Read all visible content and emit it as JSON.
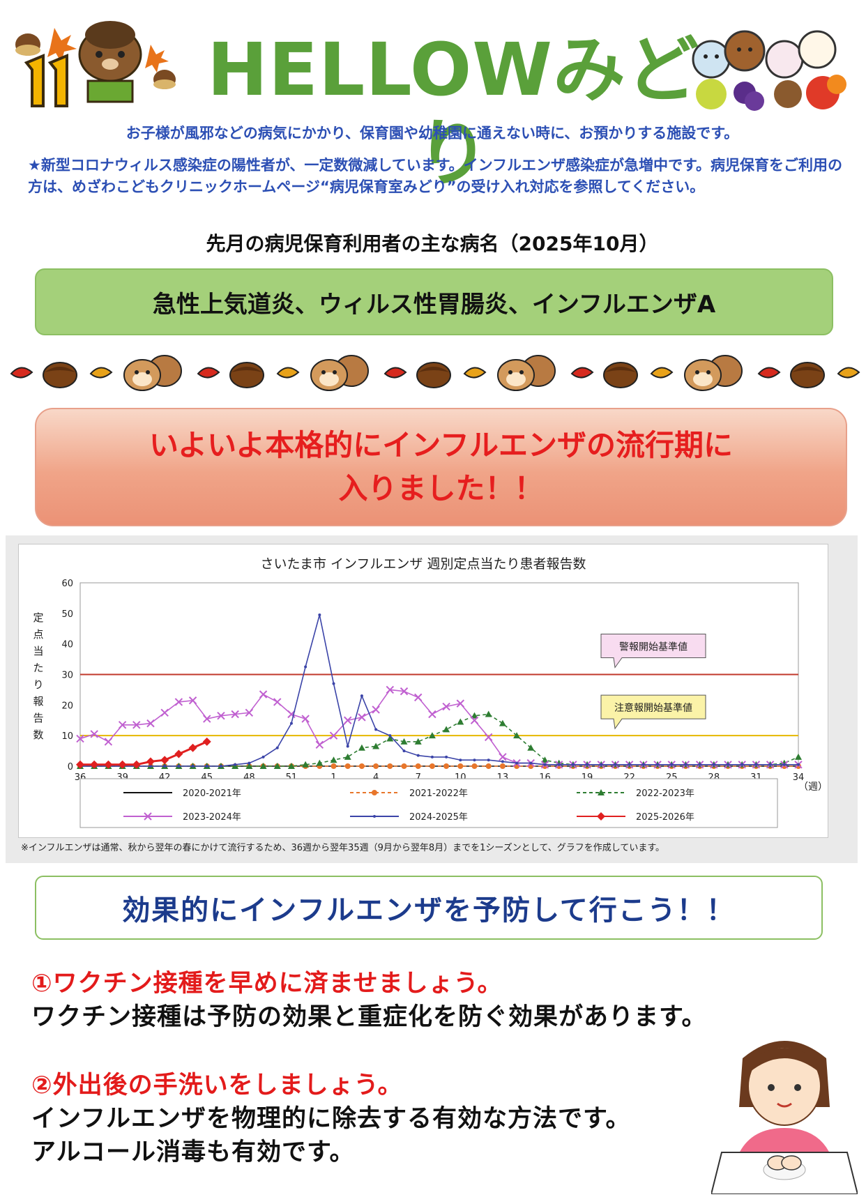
{
  "header": {
    "month_badge": "11がつ",
    "title": "HELLOWみどり"
  },
  "intro": "お子様が風邪などの病気にかかり、保育園や幼稚園に通えない時に、お預かりする施設です。",
  "notice": "★新型コロナウィルス感染症の陽性者が、一定数微減しています。インフルエンザ感染症が急増中です。病児保育をご利用の方は、めざわこどもクリニックホームページ“病児保育室みどり”の受け入れ対応を参照してください。",
  "last_month": {
    "heading": "先月の病児保育利用者の主な病名（2025年10月）",
    "diseases": "急性上気道炎、ウィルス性胃腸炎、インフルエンザA"
  },
  "alert": {
    "line1": "いよいよ本格的にインフルエンザの流行期に",
    "line2": "入りました！！"
  },
  "chart_data": {
    "type": "line",
    "title": "さいたま市 インフルエンザ 週別定点当たり患者報告数",
    "ylabel": "定点当たり報告数",
    "xlabel": "（週）",
    "ylim": [
      0,
      60
    ],
    "yticks": [
      0,
      10,
      20,
      30,
      40,
      50,
      60
    ],
    "x_tick_labels": [
      "36",
      "39",
      "42",
      "45",
      "48",
      "51",
      "1",
      "4",
      "7",
      "10",
      "13",
      "16",
      "19",
      "22",
      "25",
      "28",
      "31",
      "34"
    ],
    "thresholds": [
      {
        "label": "警報開始基準値",
        "value": 30,
        "color": "#c0392b"
      },
      {
        "label": "注意報開始基準値",
        "value": 10,
        "color": "#e6b800"
      }
    ],
    "series": [
      {
        "name": "2020-2021年",
        "color": "#111111",
        "values": [
          0,
          0,
          0,
          0,
          0,
          0,
          0,
          0,
          0,
          0,
          0,
          0,
          0,
          0,
          0,
          0,
          0,
          0,
          0,
          0,
          0,
          0,
          0,
          0,
          0,
          0,
          0,
          0,
          0,
          0,
          0,
          0,
          0,
          0,
          0,
          0,
          0,
          0,
          0,
          0,
          0,
          0,
          0,
          0,
          0,
          0,
          0,
          0,
          0,
          0,
          0,
          0
        ]
      },
      {
        "name": "2021-2022年",
        "color": "#e8762b",
        "values": [
          0,
          0,
          0,
          0,
          0,
          0,
          0,
          0,
          0,
          0,
          0,
          0,
          0,
          0,
          0,
          0,
          0,
          0,
          0,
          0,
          0,
          0,
          0,
          0,
          0,
          0,
          0,
          0,
          0,
          0,
          0,
          0,
          0,
          0,
          0,
          0,
          0,
          0,
          0,
          0,
          0,
          0,
          0,
          0,
          0,
          0,
          0,
          0,
          0,
          0,
          0,
          0
        ]
      },
      {
        "name": "2022-2023年",
        "color": "#2e7d32",
        "values": [
          0,
          0,
          0,
          0,
          0,
          0,
          0,
          0,
          0,
          0,
          0,
          0,
          0,
          0,
          0,
          0,
          0.5,
          1,
          2,
          3,
          6,
          6.5,
          9,
          8,
          8,
          10,
          12,
          14.5,
          16.5,
          17,
          14,
          10,
          6,
          2,
          1,
          0.5,
          0.5,
          0.5,
          0.5,
          0.5,
          0.5,
          0.5,
          0.5,
          0.5,
          0.5,
          0.5,
          0.5,
          0.5,
          0.5,
          0.5,
          1,
          3
        ]
      },
      {
        "name": "2023-2024年",
        "color": "#c060d0",
        "values": [
          9,
          10.5,
          8,
          13.5,
          13.5,
          14,
          17.5,
          21,
          21.5,
          15.5,
          16.5,
          17,
          17.5,
          23.5,
          21,
          17,
          15.5,
          7,
          10,
          15,
          16,
          18.5,
          25,
          24.5,
          22.5,
          17,
          19.5,
          20.5,
          15,
          9.5,
          3,
          1,
          1,
          0.5,
          0.5,
          0.5,
          0.5,
          0.5,
          0.5,
          0.5,
          0.5,
          0.5,
          0.5,
          0.5,
          0.5,
          0.5,
          0.5,
          0.5,
          0.5,
          0.5,
          0.5,
          0.5
        ]
      },
      {
        "name": "2024-2025年",
        "color": "#3b44a8",
        "values": [
          0,
          0,
          0,
          0,
          0,
          0,
          0,
          0,
          0,
          0,
          0,
          0.5,
          1,
          3,
          6,
          14,
          32.5,
          49.5,
          27,
          6.5,
          23,
          12,
          10,
          5,
          3.5,
          3,
          3,
          2,
          2,
          2,
          1.5,
          1,
          1,
          0.5,
          0.5,
          0.5,
          0.5,
          0.5,
          0.5,
          0.5,
          0.5,
          0.5,
          0.5,
          0.5,
          0.5,
          0.5,
          0.5,
          0.5,
          0.5,
          0.5,
          0.5,
          0.5
        ]
      },
      {
        "name": "2025-2026年",
        "color": "#e02020",
        "values": [
          0.5,
          0.5,
          0.5,
          0.5,
          0.5,
          1.5,
          2,
          4,
          6,
          8
        ]
      }
    ],
    "note": "※インフルエンザは通常、秋から翌年の春にかけて流行するため、36週から翌年35週（9月から翌年8月）までを1シーズンとして、グラフを作成しています。"
  },
  "prevention": {
    "heading": "効果的にインフルエンザを予防して行こう！！",
    "tips": [
      {
        "title": "①ワクチン接種を早めに済ませましょう。",
        "body": "ワクチン接種は予防の効果と重症化を防ぐ効果があります。"
      },
      {
        "title": "②外出後の手洗いをしましょう。",
        "body": "インフルエンザを物理的に除去する有効な方法です。",
        "body2": "アルコール消毒も有効です。"
      }
    ]
  }
}
